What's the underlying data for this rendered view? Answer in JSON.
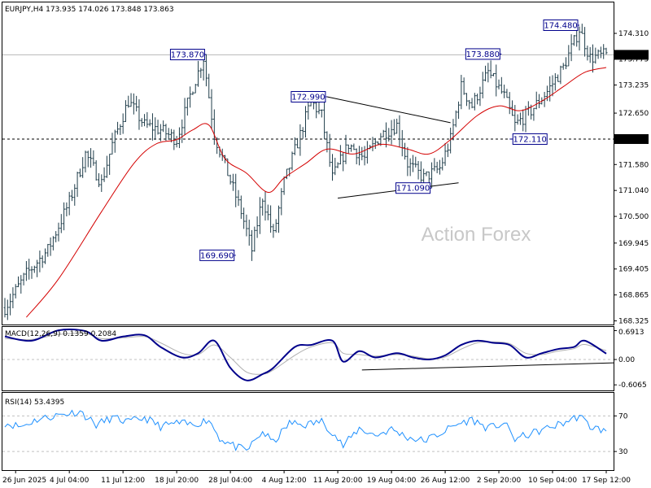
{
  "colors": {
    "candle": "#1f3d4a",
    "ma": "#d40000",
    "macd_line": "#00008b",
    "macd_signal": "#b0b0b0",
    "rsi": "#1e90ff",
    "trendline": "#000000",
    "callout_border": "#00008b",
    "price_box_bg": "#000000"
  },
  "watermark": "Action Forex",
  "chart_data": [
    {
      "type": "candlestick",
      "title": "EURJPY,H4  173.935 174.026 173.848 173.863",
      "ylim": [
        168.3,
        174.7
      ],
      "y_ticks": [
        "174.310",
        "173.775",
        "173.235",
        "172.650",
        "172.110",
        "171.580",
        "171.040",
        "170.500",
        "169.945",
        "169.405",
        "168.865",
        "168.325"
      ],
      "current_price": "173.863",
      "current_price_value": 173.863,
      "horizontal_level": "172.110",
      "horizontal_level_value": 172.11,
      "last_close_line_value": 173.863,
      "x_ticks": [
        "26 Jun 2025",
        "4 Jul 04:00",
        "11 Jul 12:00",
        "18 Jul 20:00",
        "28 Jul 04:00",
        "4 Aug 12:00",
        "11 Aug 20:00",
        "19 Aug 04:00",
        "26 Aug 12:00",
        "2 Sep 20:00",
        "10 Sep 04:00",
        "17 Sep 12:00"
      ],
      "n_bars": 225,
      "closes": [
        [
          0,
          168.6
        ],
        [
          8,
          169.3
        ],
        [
          16,
          169.8
        ],
        [
          24,
          170.8
        ],
        [
          30,
          171.8
        ],
        [
          36,
          171.2
        ],
        [
          40,
          172.0
        ],
        [
          46,
          172.9
        ],
        [
          52,
          172.4
        ],
        [
          58,
          172.3
        ],
        [
          64,
          172.1
        ],
        [
          70,
          173.2
        ],
        [
          74,
          173.8
        ],
        [
          78,
          172.2
        ],
        [
          83,
          171.4
        ],
        [
          88,
          170.6
        ],
        [
          92,
          169.8
        ],
        [
          96,
          170.9
        ],
        [
          100,
          170.1
        ],
        [
          104,
          171.2
        ],
        [
          110,
          172.2
        ],
        [
          114,
          172.9
        ],
        [
          118,
          172.6
        ],
        [
          122,
          171.3
        ],
        [
          128,
          172.0
        ],
        [
          134,
          171.7
        ],
        [
          140,
          172.2
        ],
        [
          146,
          172.4
        ],
        [
          150,
          171.6
        ],
        [
          156,
          171.3
        ],
        [
          162,
          171.5
        ],
        [
          166,
          172.1
        ],
        [
          170,
          173.2
        ],
        [
          174,
          172.8
        ],
        [
          180,
          173.5
        ],
        [
          186,
          173.0
        ],
        [
          190,
          172.4
        ],
        [
          196,
          172.7
        ],
        [
          202,
          173.1
        ],
        [
          208,
          173.6
        ],
        [
          214,
          174.4
        ],
        [
          218,
          173.8
        ],
        [
          224,
          173.863
        ]
      ],
      "ma_points": [
        [
          8,
          168.4
        ],
        [
          20,
          169.2
        ],
        [
          36,
          170.6
        ],
        [
          48,
          171.6
        ],
        [
          56,
          172.0
        ],
        [
          64,
          172.1
        ],
        [
          70,
          172.3
        ],
        [
          76,
          172.4
        ],
        [
          82,
          171.7
        ],
        [
          90,
          171.4
        ],
        [
          98,
          171.0
        ],
        [
          104,
          171.3
        ],
        [
          112,
          171.6
        ],
        [
          120,
          171.9
        ],
        [
          130,
          171.8
        ],
        [
          140,
          172.0
        ],
        [
          150,
          171.9
        ],
        [
          158,
          171.8
        ],
        [
          166,
          172.1
        ],
        [
          176,
          172.6
        ],
        [
          184,
          172.8
        ],
        [
          192,
          172.7
        ],
        [
          200,
          172.9
        ],
        [
          208,
          173.2
        ],
        [
          216,
          173.5
        ],
        [
          224,
          173.6
        ]
      ],
      "trendlines": [
        {
          "from": [
            120,
            172.99
          ],
          "to": [
            166,
            172.45
          ]
        },
        {
          "from": [
            124,
            170.88
          ],
          "to": [
            169,
            171.2
          ]
        }
      ],
      "callouts": [
        {
          "label": "173.870",
          "x": 75,
          "y": 173.87,
          "side": "left"
        },
        {
          "label": "169.690",
          "x": 86,
          "y": 169.69,
          "side": "left"
        },
        {
          "label": "172.990",
          "x": 120,
          "y": 172.99,
          "side": "left"
        },
        {
          "label": "171.090",
          "x": 159,
          "y": 171.09,
          "side": "left"
        },
        {
          "label": "173.880",
          "x": 185,
          "y": 173.88,
          "side": "left"
        },
        {
          "label": "172.110",
          "x": 188,
          "y": 172.11,
          "side": "right"
        },
        {
          "label": "174.480",
          "x": 214,
          "y": 174.48,
          "side": "left"
        }
      ]
    },
    {
      "type": "line",
      "title": "MACD(12,26,9) 0.1359 0.2084",
      "ylim": [
        -0.72,
        0.76
      ],
      "y_ticks": [
        "0.6913",
        "0.00",
        "-0.6065"
      ],
      "series": [
        {
          "name": "MACD",
          "points": [
            [
              0,
              0.55
            ],
            [
              10,
              0.45
            ],
            [
              20,
              0.7
            ],
            [
              30,
              0.68
            ],
            [
              36,
              0.45
            ],
            [
              44,
              0.55
            ],
            [
              52,
              0.58
            ],
            [
              58,
              0.3
            ],
            [
              66,
              0.05
            ],
            [
              72,
              0.15
            ],
            [
              78,
              0.45
            ],
            [
              84,
              -0.2
            ],
            [
              90,
              -0.5
            ],
            [
              96,
              -0.35
            ],
            [
              100,
              -0.2
            ],
            [
              108,
              0.3
            ],
            [
              114,
              0.35
            ],
            [
              122,
              0.45
            ],
            [
              126,
              -0.05
            ],
            [
              132,
              0.2
            ],
            [
              138,
              0.05
            ],
            [
              146,
              0.15
            ],
            [
              152,
              0.05
            ],
            [
              158,
              0.0
            ],
            [
              164,
              0.1
            ],
            [
              170,
              0.35
            ],
            [
              176,
              0.45
            ],
            [
              182,
              0.4
            ],
            [
              188,
              0.35
            ],
            [
              194,
              0.05
            ],
            [
              200,
              0.15
            ],
            [
              206,
              0.25
            ],
            [
              212,
              0.3
            ],
            [
              216,
              0.45
            ],
            [
              224,
              0.14
            ]
          ]
        },
        {
          "name": "Signal",
          "points": [
            [
              0,
              0.5
            ],
            [
              10,
              0.48
            ],
            [
              20,
              0.6
            ],
            [
              30,
              0.62
            ],
            [
              36,
              0.5
            ],
            [
              44,
              0.52
            ],
            [
              52,
              0.55
            ],
            [
              58,
              0.4
            ],
            [
              66,
              0.15
            ],
            [
              72,
              0.12
            ],
            [
              78,
              0.35
            ],
            [
              84,
              0.05
            ],
            [
              90,
              -0.3
            ],
            [
              96,
              -0.35
            ],
            [
              100,
              -0.25
            ],
            [
              108,
              0.1
            ],
            [
              114,
              0.3
            ],
            [
              122,
              0.4
            ],
            [
              126,
              0.15
            ],
            [
              132,
              0.12
            ],
            [
              138,
              0.08
            ],
            [
              146,
              0.12
            ],
            [
              152,
              0.08
            ],
            [
              158,
              0.02
            ],
            [
              164,
              0.06
            ],
            [
              170,
              0.25
            ],
            [
              176,
              0.4
            ],
            [
              182,
              0.42
            ],
            [
              188,
              0.38
            ],
            [
              194,
              0.15
            ],
            [
              200,
              0.12
            ],
            [
              206,
              0.2
            ],
            [
              212,
              0.26
            ],
            [
              216,
              0.36
            ],
            [
              224,
              0.21
            ]
          ]
        }
      ],
      "trendline": {
        "from": [
          133,
          -0.25
        ],
        "to": [
          224,
          -0.08
        ]
      }
    },
    {
      "type": "line",
      "title": "RSI(14) 53.4395",
      "ylim": [
        10,
        95
      ],
      "y_ticks": [
        "70",
        "30"
      ],
      "levels": [
        70,
        30
      ],
      "series": [
        {
          "name": "RSI",
          "points": [
            [
              0,
              62
            ],
            [
              6,
              58
            ],
            [
              12,
              66
            ],
            [
              20,
              71
            ],
            [
              28,
              75
            ],
            [
              34,
              60
            ],
            [
              40,
              68
            ],
            [
              46,
              63
            ],
            [
              52,
              68
            ],
            [
              58,
              58
            ],
            [
              64,
              62
            ],
            [
              70,
              60
            ],
            [
              76,
              66
            ],
            [
              80,
              45
            ],
            [
              86,
              35
            ],
            [
              90,
              31
            ],
            [
              96,
              52
            ],
            [
              100,
              40
            ],
            [
              106,
              62
            ],
            [
              112,
              60
            ],
            [
              118,
              64
            ],
            [
              122,
              52
            ],
            [
              126,
              36
            ],
            [
              132,
              56
            ],
            [
              138,
              48
            ],
            [
              144,
              55
            ],
            [
              150,
              46
            ],
            [
              156,
              42
            ],
            [
              162,
              50
            ],
            [
              168,
              60
            ],
            [
              174,
              66
            ],
            [
              180,
              56
            ],
            [
              186,
              62
            ],
            [
              190,
              44
            ],
            [
              196,
              50
            ],
            [
              202,
              56
            ],
            [
              208,
              62
            ],
            [
              214,
              70
            ],
            [
              218,
              58
            ],
            [
              224,
              53
            ]
          ]
        }
      ]
    }
  ]
}
